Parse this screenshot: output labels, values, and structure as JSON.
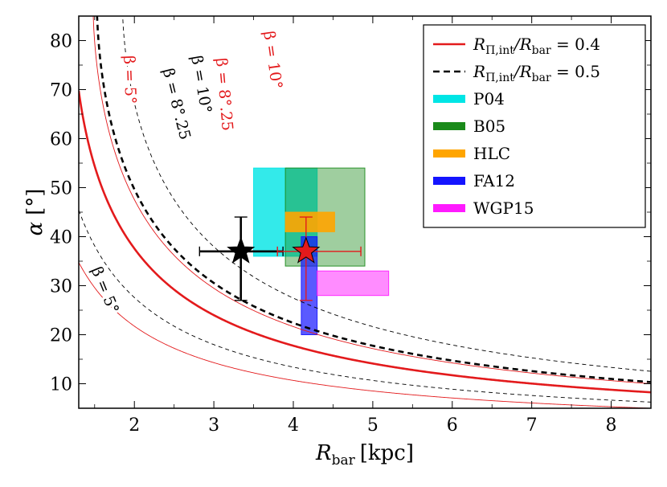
{
  "chart_data": {
    "type": "line",
    "xlabel": "R_bar [kpc]",
    "ylabel": "α [°]",
    "xlim": [
      1.3,
      8.5
    ],
    "ylim": [
      5,
      85
    ],
    "xticks": [
      2,
      3,
      4,
      5,
      6,
      7,
      8
    ],
    "yticks": [
      10,
      20,
      30,
      40,
      50,
      60,
      70,
      80
    ],
    "xlabel_main": "R",
    "xlabel_sub": "bar",
    "xlabel_unit": "[kpc]",
    "ylabel_main": "α",
    "ylabel_unit": "[°]",
    "series": [
      {
        "name": "R_Π,int/R_bar = 0.4, β = 5°",
        "ratio": 0.4,
        "beta": 5,
        "color": "#e31a1c",
        "style": "thin-solid"
      },
      {
        "name": "R_Π,int/R_bar = 0.4, β = 8°.25",
        "ratio": 0.4,
        "beta": 8.25,
        "color": "#e31a1c",
        "style": "thick-solid"
      },
      {
        "name": "R_Π,int/R_bar = 0.4, β = 10°",
        "ratio": 0.4,
        "beta": 10,
        "color": "#e31a1c",
        "style": "thin-solid"
      },
      {
        "name": "R_Π,int/R_bar = 0.5, β = 5°",
        "ratio": 0.5,
        "beta": 5,
        "color": "#000000",
        "style": "thin-dashed"
      },
      {
        "name": "R_Π,int/R_bar = 0.5, β = 8°.25",
        "ratio": 0.5,
        "beta": 8.25,
        "color": "#000000",
        "style": "thick-dashed"
      },
      {
        "name": "R_Π,int/R_bar = 0.5, β = 10°",
        "ratio": 0.5,
        "beta": 10,
        "color": "#000000",
        "style": "thin-dashed"
      }
    ],
    "curve_labels": [
      {
        "text": "β = 5°",
        "color": "#e31a1c",
        "x": 1.93,
        "y": 72,
        "angle": 88
      },
      {
        "text": "β = 8°.25",
        "color": "#e31a1c",
        "x": 3.12,
        "y": 69,
        "angle": 85
      },
      {
        "text": "β = 10°",
        "color": "#e31a1c",
        "x": 3.73,
        "y": 76,
        "angle": 82
      },
      {
        "text": "β = 5°",
        "color": "#000000",
        "x": 1.62,
        "y": 29,
        "angle": 68
      },
      {
        "text": "β = 8°.25",
        "color": "#000000",
        "x": 2.52,
        "y": 67,
        "angle": 76
      },
      {
        "text": "β = 10°",
        "color": "#000000",
        "x": 2.83,
        "y": 71,
        "angle": 80
      }
    ],
    "regions": [
      {
        "name": "P04",
        "x": [
          3.5,
          4.3
        ],
        "y": [
          36,
          54
        ],
        "color": "#00e5e5",
        "opacity": 0.8
      },
      {
        "name": "B05",
        "x": [
          3.9,
          4.9
        ],
        "y": [
          34,
          54
        ],
        "color": "#1a8a1a",
        "opacity": 0.42
      },
      {
        "name": "HLC",
        "x": [
          3.9,
          4.52
        ],
        "y": [
          41,
          45
        ],
        "color": "#ffa500",
        "opacity": 0.9
      },
      {
        "name": "FA12",
        "x": [
          4.1,
          4.3
        ],
        "y": [
          20,
          40
        ],
        "color": "#1414ff",
        "opacity": 0.7
      },
      {
        "name": "WGP15",
        "x": [
          4.3,
          5.2
        ],
        "y": [
          28,
          33
        ],
        "color": "#ff1aff",
        "opacity": 0.5
      }
    ],
    "points": [
      {
        "name": "black-star",
        "x": 3.34,
        "y": 37,
        "xerr": [
          0.52,
          0.53
        ],
        "yerr": [
          10,
          7
        ],
        "color": "#000000"
      },
      {
        "name": "red-star",
        "x": 4.16,
        "y": 37,
        "xerr": [
          0.36,
          0.69
        ],
        "yerr": [
          10,
          7
        ],
        "color": "#e31a1c"
      }
    ],
    "legend": {
      "placement": "top-right",
      "entries": [
        {
          "label": "R_Π,int/R_bar = 0.4",
          "main": "R",
          "sub": "Π,int",
          "slash": "/R",
          "sub2": "bar",
          "tail": " = 0.4",
          "kind": "line",
          "color": "#e31a1c",
          "dash": false
        },
        {
          "label": "R_Π,int/R_bar = 0.5",
          "main": "R",
          "sub": "Π,int",
          "slash": "/R",
          "sub2": "bar",
          "tail": " = 0.5",
          "kind": "line",
          "color": "#000000",
          "dash": true
        },
        {
          "label": "P04",
          "kind": "patch",
          "color": "#00e5e5"
        },
        {
          "label": "B05",
          "kind": "patch",
          "color": "#1a8a1a"
        },
        {
          "label": "HLC",
          "kind": "patch",
          "color": "#ffa500"
        },
        {
          "label": "FA12",
          "kind": "patch",
          "color": "#1414ff"
        },
        {
          "label": "WGP15",
          "kind": "patch",
          "color": "#ff1aff"
        }
      ]
    }
  }
}
